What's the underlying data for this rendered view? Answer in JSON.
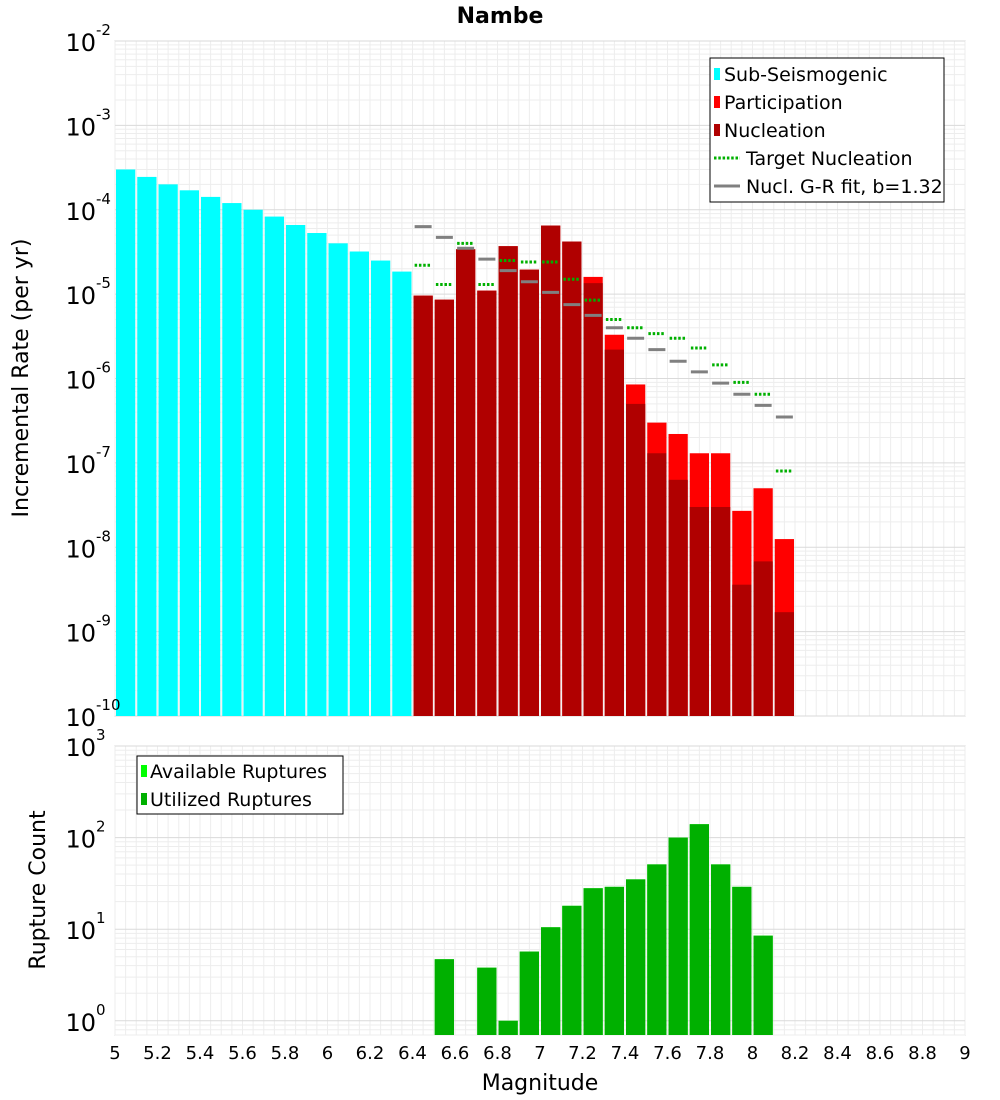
{
  "chart_data": [
    {
      "type": "bar",
      "title": "Nambe",
      "ylabel": "Incremental Rate (per yr)",
      "yscale": "log",
      "ylim": [
        1e-10,
        0.01
      ],
      "xlim": [
        5,
        9
      ],
      "grid": true,
      "legend_position": "top-right",
      "y_tick_labels": [
        {
          "base": "10",
          "exp": "-10",
          "value": 1e-10
        },
        {
          "base": "10",
          "exp": "-9",
          "value": 1e-09
        },
        {
          "base": "10",
          "exp": "-8",
          "value": 1e-08
        },
        {
          "base": "10",
          "exp": "-7",
          "value": 1e-07
        },
        {
          "base": "10",
          "exp": "-6",
          "value": 1e-06
        },
        {
          "base": "10",
          "exp": "-5",
          "value": 1e-05
        },
        {
          "base": "10",
          "exp": "-4",
          "value": 0.0001
        },
        {
          "base": "10",
          "exp": "-3",
          "value": 0.001
        },
        {
          "base": "10",
          "exp": "-2",
          "value": 0.01
        }
      ],
      "bin_width": 0.1,
      "series": [
        {
          "name": "Sub-Seismogenic",
          "color": "#00ffff",
          "legend_marker": "bar",
          "x": [
            5.05,
            5.15,
            5.25,
            5.35,
            5.45,
            5.55,
            5.65,
            5.75,
            5.85,
            5.95,
            6.05,
            6.15,
            6.25,
            6.35
          ],
          "values": [
            0.0003,
            0.000245,
            0.0002,
            0.00017,
            0.000142,
            0.00012,
            0.0001,
            8.3e-05,
            6.6e-05,
            5.3e-05,
            4e-05,
            3.2e-05,
            2.5e-05,
            1.85e-05
          ]
        },
        {
          "name": "Participation",
          "color": "#ff0000",
          "legend_marker": "bar",
          "x": [
            6.45,
            6.55,
            6.65,
            6.75,
            6.85,
            6.95,
            7.05,
            7.15,
            7.25,
            7.35,
            7.45,
            7.55,
            7.65,
            7.75,
            7.85,
            7.95,
            8.05,
            8.15
          ],
          "values": [
            9.6e-06,
            8.6e-06,
            3.4e-05,
            1.1e-05,
            3.7e-05,
            1.95e-05,
            6.5e-05,
            4.2e-05,
            1.6e-05,
            3.3e-06,
            8.5e-07,
            3e-07,
            2.2e-07,
            1.3e-07,
            1.3e-07,
            2.7e-08,
            5e-08,
            1.25e-08
          ]
        },
        {
          "name": "Nucleation",
          "color": "#b00000",
          "legend_marker": "bar",
          "x": [
            6.45,
            6.55,
            6.65,
            6.75,
            6.85,
            6.95,
            7.05,
            7.15,
            7.25,
            7.35,
            7.45,
            7.55,
            7.65,
            7.75,
            7.85,
            7.95,
            8.05,
            8.15
          ],
          "values": [
            9.6e-06,
            8.6e-06,
            3.4e-05,
            1.1e-05,
            3.7e-05,
            1.95e-05,
            6.5e-05,
            4.2e-05,
            1.35e-05,
            2.2e-06,
            5e-07,
            1.3e-07,
            6.3e-08,
            3e-08,
            3e-08,
            3.6e-09,
            6.8e-09,
            1.7e-09
          ]
        },
        {
          "name": "Target Nucleation",
          "color": "#00b000",
          "legend_marker": "dotted-line",
          "x": [
            6.45,
            6.55,
            6.65,
            6.75,
            6.85,
            6.95,
            7.05,
            7.15,
            7.25,
            7.35,
            7.45,
            7.55,
            7.65,
            7.75,
            7.85,
            7.95,
            8.05,
            8.15
          ],
          "values": [
            2.2e-05,
            1.3e-05,
            4e-05,
            1.3e-05,
            2.5e-05,
            2.4e-05,
            2.4e-05,
            1.5e-05,
            8.5e-06,
            5e-06,
            4e-06,
            3.4e-06,
            3e-06,
            2.3e-06,
            1.45e-06,
            9e-07,
            6.5e-07,
            8e-08
          ]
        },
        {
          "name": "Nucl. G-R fit, b=1.32",
          "color": "#808080",
          "legend_marker": "line",
          "x": [
            6.45,
            6.55,
            6.65,
            6.75,
            6.85,
            6.95,
            7.05,
            7.15,
            7.25,
            7.35,
            7.45,
            7.55,
            7.65,
            7.75,
            7.85,
            7.95,
            8.05,
            8.15
          ],
          "values": [
            6.3e-05,
            4.7e-05,
            3.5e-05,
            2.6e-05,
            1.9e-05,
            1.4e-05,
            1.05e-05,
            7.5e-06,
            5.6e-06,
            4e-06,
            3e-06,
            2.2e-06,
            1.6e-06,
            1.2e-06,
            8.8e-07,
            6.5e-07,
            4.8e-07,
            3.5e-07
          ]
        }
      ]
    },
    {
      "type": "bar",
      "xlabel": "Magnitude",
      "ylabel": "Rupture Count",
      "yscale": "log",
      "ylim": [
        0.7,
        1000
      ],
      "xlim": [
        5,
        9
      ],
      "grid": true,
      "legend_position": "top-left",
      "y_tick_labels": [
        {
          "base": "10",
          "exp": "0",
          "value": 1
        },
        {
          "base": "10",
          "exp": "1",
          "value": 10
        },
        {
          "base": "10",
          "exp": "2",
          "value": 100
        },
        {
          "base": "10",
          "exp": "3",
          "value": 1000
        }
      ],
      "x_tick_labels": [
        "5",
        "5.2",
        "5.4",
        "5.6",
        "5.8",
        "6",
        "6.2",
        "6.4",
        "6.6",
        "6.8",
        "7",
        "7.2",
        "7.4",
        "7.6",
        "7.8",
        "8",
        "8.2",
        "8.4",
        "8.6",
        "8.8",
        "9"
      ],
      "bin_width": 0.1,
      "series": [
        {
          "name": "Available Ruptures",
          "color": "#00ff00",
          "legend_marker": "bar",
          "x": [
            6.55,
            6.75,
            6.85,
            6.95,
            7.05,
            7.15,
            7.25,
            7.35,
            7.45,
            7.55,
            7.65,
            7.75,
            7.85,
            7.95,
            8.05
          ],
          "values": [
            4.7,
            3.8,
            1,
            5.7,
            10.5,
            18,
            28,
            29,
            35,
            51,
            100,
            140,
            51,
            29,
            8.5
          ]
        },
        {
          "name": "Utilized Ruptures",
          "color": "#00b000",
          "legend_marker": "bar",
          "x": [
            6.55,
            6.75,
            6.85,
            6.95,
            7.05,
            7.15,
            7.25,
            7.35,
            7.45,
            7.55,
            7.65,
            7.75,
            7.85,
            7.95,
            8.05
          ],
          "values": [
            4.7,
            3.8,
            1,
            5.7,
            10.5,
            18,
            28,
            29,
            35,
            51,
            100,
            140,
            51,
            29,
            8.5
          ]
        }
      ]
    }
  ]
}
